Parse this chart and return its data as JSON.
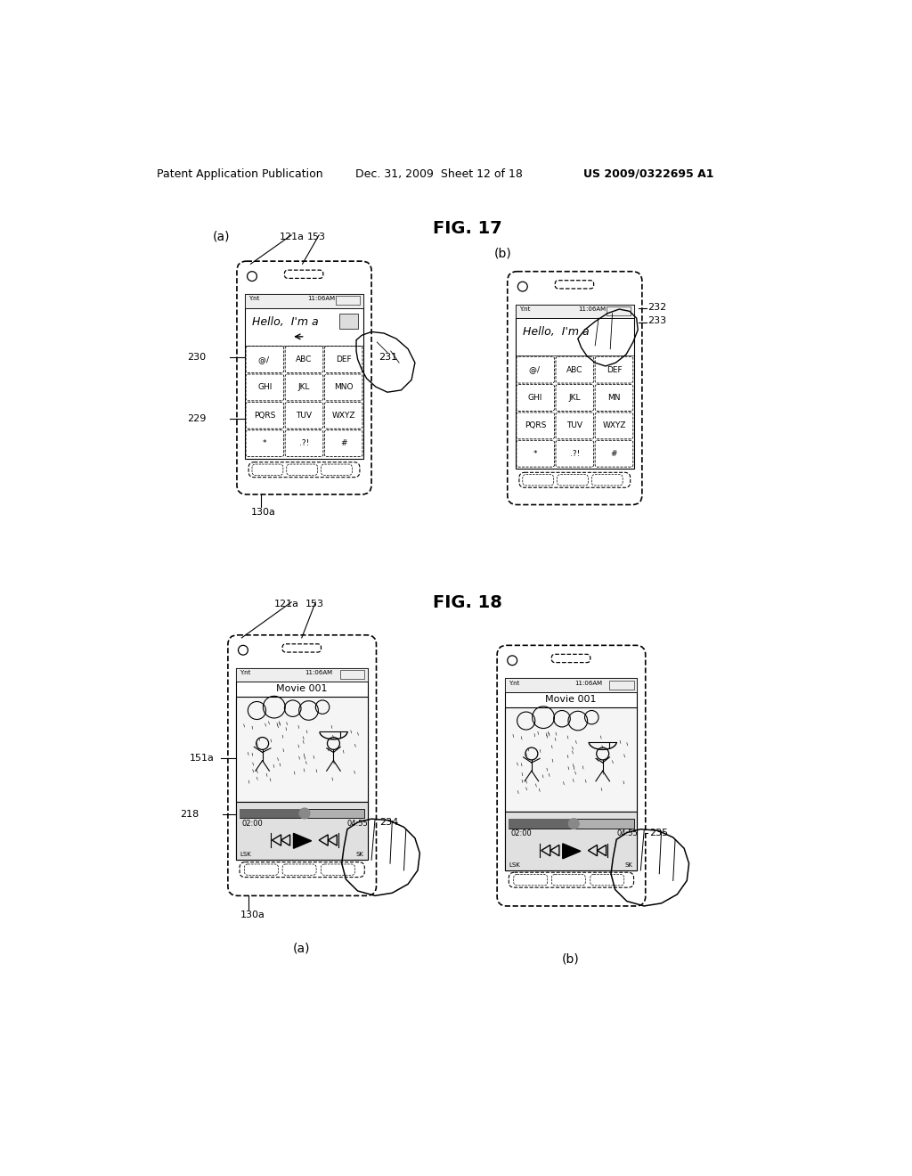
{
  "bg_color": "#ffffff",
  "header_left": "Patent Application Publication",
  "header_mid": "Dec. 31, 2009  Sheet 12 of 18",
  "header_right": "US 2009/0322695 A1",
  "fig17_title": "FIG. 17",
  "fig18_title": "FIG. 18",
  "ref_121a": "121a",
  "ref_153": "153",
  "ref_229": "229",
  "ref_230": "230",
  "ref_231": "231",
  "ref_232": "232",
  "ref_233": "233",
  "ref_130a": "130a",
  "ref_151a": "151a",
  "ref_218": "218",
  "ref_234": "234",
  "ref_235": "235",
  "keyboard_rows": [
    [
      "@/ ",
      "ABC",
      "DEF"
    ],
    [
      "GHI",
      "JKL",
      "MNO"
    ],
    [
      "PQRS",
      "TUV",
      "WXYZ"
    ],
    [
      "*",
      ".?!",
      "#"
    ]
  ],
  "status_bar_text": "11:06AM",
  "movie_title": "Movie 001",
  "time_start": "02:00",
  "time_end": "04:55",
  "lsk_text": "LSK",
  "rsk_text": "SK"
}
